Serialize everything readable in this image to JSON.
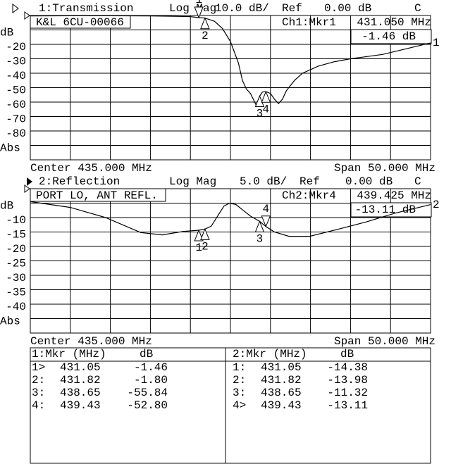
{
  "chart_data": [
    {
      "type": "line",
      "header": {
        "channel": "1:Transmission",
        "format": "Log Mag",
        "scale": "10.0 dB/",
        "ref_label": "Ref",
        "ref": "0.00 dB",
        "flag": "C"
      },
      "title": "K&L 6CU-00066",
      "readout": {
        "channel": "Ch1:Mkr1",
        "freq": "431.050 MHz",
        "value": "-1.46 dB"
      },
      "center": "Center 435.000 MHz",
      "span": "Span 50.000 MHz",
      "trace_label": "1",
      "xlim": [
        410,
        460
      ],
      "ylim": [
        -100,
        0
      ],
      "x_divisions": 10,
      "yticks": [
        {
          "value": -10,
          "label": "dB"
        },
        -20,
        -30,
        -40,
        -50,
        -60,
        -70,
        -80,
        {
          "value": -90,
          "label": "Abs"
        }
      ],
      "color": "#000000",
      "x": [
        410,
        415,
        420,
        425,
        430,
        431.05,
        431.82,
        433,
        434,
        435,
        436,
        436.5,
        437,
        437.5,
        438.2,
        438.65,
        439,
        439.43,
        440,
        440.5,
        441,
        441.5,
        442,
        443,
        444,
        446,
        448,
        450,
        454,
        457,
        460
      ],
      "values": [
        -0.3,
        -0.2,
        -0.2,
        -0.3,
        -0.8,
        -1.46,
        -1.8,
        -4,
        -9,
        -18,
        -33,
        -45,
        -51,
        -54,
        -62,
        -55.84,
        -53,
        -52.8,
        -54,
        -58,
        -61,
        -58,
        -52,
        -45,
        -40,
        -35,
        -32,
        -30,
        -27,
        -23,
        -19
      ],
      "markers": [
        {
          "label": "1",
          "x": 431.05,
          "value": -1.46,
          "active": true
        },
        {
          "label": "2",
          "x": 431.82,
          "value": -1.8,
          "active": false
        },
        {
          "label": "3",
          "x": 438.65,
          "value": -55.84,
          "active": false
        },
        {
          "label": "4",
          "x": 439.43,
          "value": -52.8,
          "active": false
        }
      ]
    },
    {
      "type": "line",
      "header": {
        "channel": "2:Reflection",
        "format": "Log Mag",
        "scale": "5.0 dB/",
        "ref_label": "Ref",
        "ref": "0.00 dB",
        "flag": "C"
      },
      "title": "PORT LO, ANT REFL.",
      "readout": {
        "channel": "Ch2:Mkr4",
        "freq": "439.425 MHz",
        "value": "-13.11 dB"
      },
      "center": "Center 435.000 MHz",
      "span": "Span 50.000 MHz",
      "trace_label": "2",
      "xlim": [
        410,
        460
      ],
      "ylim": [
        -50,
        0
      ],
      "x_divisions": 10,
      "yticks": [
        {
          "value": -5,
          "label": "dB"
        },
        -10,
        -15,
        -20,
        -25,
        -30,
        -35,
        -40,
        {
          "value": -45,
          "label": "Abs"
        }
      ],
      "color": "#000000",
      "x": [
        410,
        415,
        419.4,
        423.8,
        426.5,
        429.1,
        431.05,
        431.82,
        432.6,
        433.5,
        434.2,
        434.9,
        435.7,
        436.6,
        437.5,
        438.65,
        439.43,
        440.5,
        442.3,
        444.9,
        448.5,
        452,
        455.5,
        460
      ],
      "values": [
        -4.5,
        -6.5,
        -10,
        -15.2,
        -16,
        -14.8,
        -14.38,
        -13.98,
        -13,
        -9,
        -6,
        -5,
        -5.5,
        -7.5,
        -9.5,
        -11.32,
        -13.11,
        -15,
        -16.5,
        -16.5,
        -14,
        -11.5,
        -8.5,
        -5.5
      ],
      "markers": [
        {
          "label": "1",
          "x": 431.05,
          "value": -14.38,
          "active": false
        },
        {
          "label": "2",
          "x": 431.82,
          "value": -13.98,
          "active": false
        },
        {
          "label": "3",
          "x": 438.65,
          "value": -11.32,
          "active": false
        },
        {
          "label": "4",
          "x": 439.43,
          "value": -13.11,
          "active": true
        }
      ]
    }
  ],
  "marker_table": [
    {
      "header": [
        "1:Mkr (MHz)",
        "dB"
      ],
      "rows": [
        [
          "1>",
          "431.05",
          "-1.46"
        ],
        [
          "2:",
          "431.82",
          "-1.80"
        ],
        [
          "3:",
          "438.65",
          "-55.84"
        ],
        [
          "4:",
          "439.43",
          "-52.80"
        ]
      ]
    },
    {
      "header": [
        "2:Mkr (MHz)",
        "dB"
      ],
      "rows": [
        [
          "1:",
          "431.05",
          "-14.38"
        ],
        [
          "2:",
          "431.82",
          "-13.98"
        ],
        [
          "3:",
          "438.65",
          "-11.32"
        ],
        [
          "4>",
          "439.43",
          "-13.11"
        ]
      ]
    }
  ]
}
